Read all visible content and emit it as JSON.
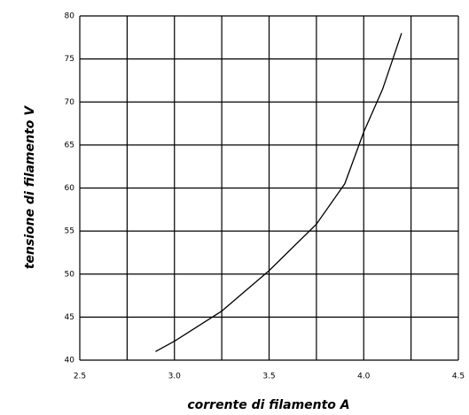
{
  "chart_data": {
    "type": "line",
    "x_label": "corrente di filamento A",
    "y_label": "tensione di filamento V",
    "x": [
      2.9,
      3.0,
      3.25,
      3.5,
      3.75,
      3.9,
      4.0,
      4.1,
      4.2
    ],
    "series": [
      {
        "color": "#000000",
        "values": [
          41,
          42.2,
          45.7,
          50.4,
          55.8,
          60.5,
          66.5,
          71.5,
          78
        ]
      }
    ],
    "xlim": [
      2.5,
      4.5
    ],
    "xticks": [
      2.5,
      {
        "value": 3,
        "label": "3.0"
      },
      3.5,
      {
        "value": 4,
        "label": "4.0"
      },
      4.5
    ],
    "minor_xticks": [
      2.75,
      3.25,
      3.75,
      4.25
    ],
    "ylim": [
      40,
      80
    ],
    "yticks": [
      40,
      45,
      50,
      55,
      60,
      65,
      70,
      75,
      80
    ],
    "grid": true
  }
}
